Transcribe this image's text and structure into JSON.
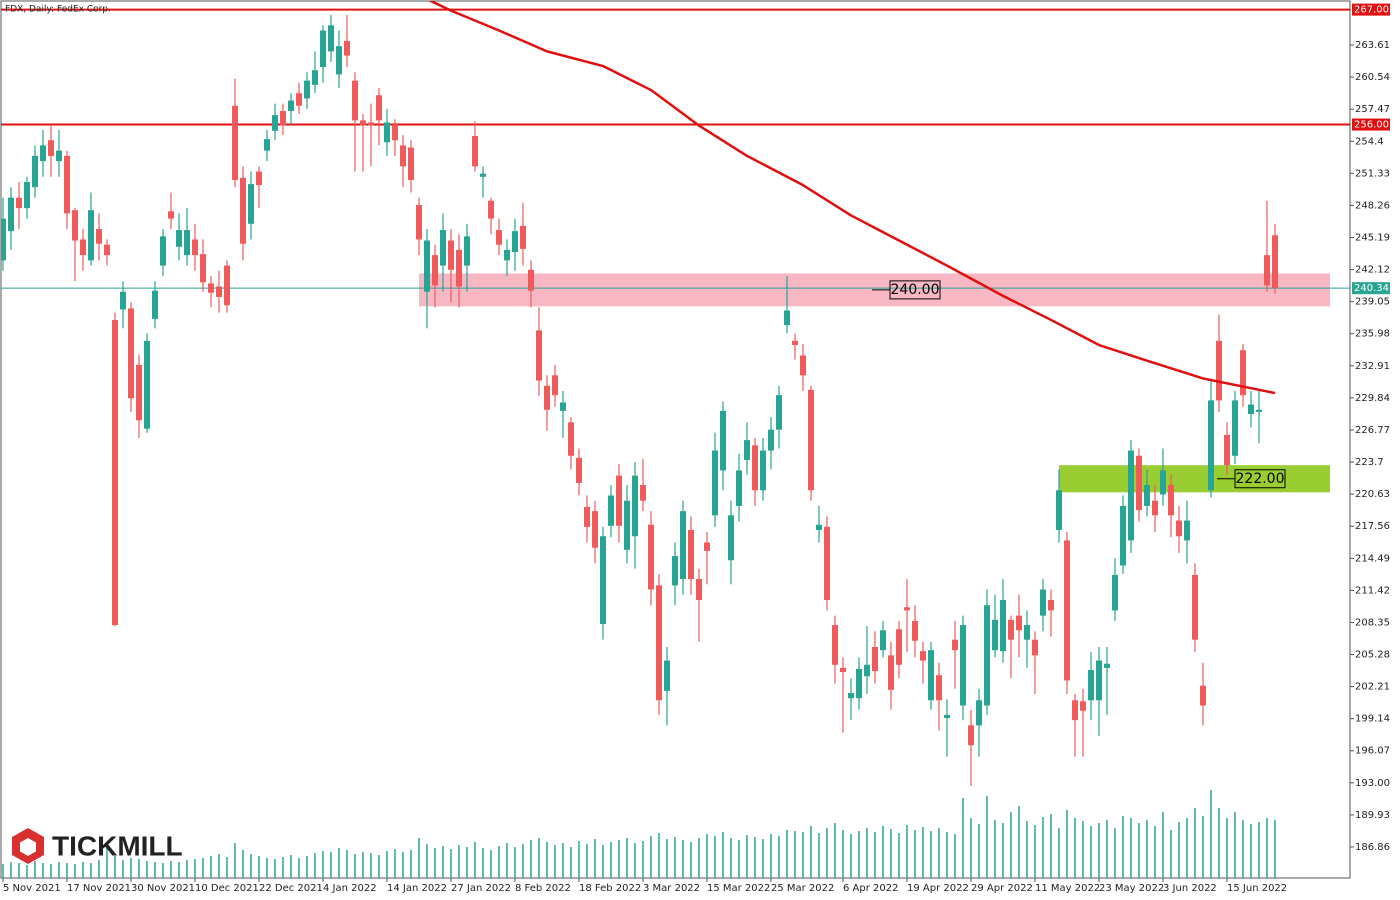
{
  "chart_data": {
    "type": "candlestick",
    "title": "FDX, Daily:  FedEx Corp.",
    "logo": "TICKMILL",
    "up_color": "#27a592",
    "down_color": "#ef5a5a",
    "volume_color": "#27a592",
    "ylim": [
      186.0,
      267.0
    ],
    "yticks": [
      263.61,
      260.54,
      257.47,
      254.4,
      251.33,
      248.26,
      245.19,
      242.12,
      239.05,
      235.98,
      232.91,
      229.84,
      226.77,
      223.7,
      220.63,
      217.56,
      214.49,
      211.42,
      208.35,
      205.28,
      202.21,
      199.14,
      196.07,
      {
        "value": 193.0,
        "label": "193.00"
      },
      189.93,
      186.86
    ],
    "xticks": [
      {
        "value": 0,
        "label": "5 Nov 2021"
      },
      {
        "value": 8,
        "label": "17 Nov 2021"
      },
      {
        "value": 16,
        "label": "30 Nov 2021"
      },
      {
        "value": 24,
        "label": "10 Dec 2021"
      },
      {
        "value": 32,
        "label": "22 Dec 2021"
      },
      {
        "value": 40,
        "label": "4 Jan 2022"
      },
      {
        "value": 48,
        "label": "14 Jan 2022"
      },
      {
        "value": 56,
        "label": "27 Jan 2022"
      },
      {
        "value": 64,
        "label": "8 Feb 2022"
      },
      {
        "value": 72,
        "label": "18 Feb 2022"
      },
      {
        "value": 80,
        "label": "3 Mar 2022"
      },
      {
        "value": 88,
        "label": "15 Mar 2022"
      },
      {
        "value": 96,
        "label": "25 Mar 2022"
      },
      {
        "value": 105,
        "label": "6 Apr 2022"
      },
      {
        "value": 113,
        "label": "19 Apr 2022"
      },
      {
        "value": 121,
        "label": "29 Apr 2022"
      },
      {
        "value": 129,
        "label": "11 May 2022"
      },
      {
        "value": 137,
        "label": "23 May 2022"
      },
      {
        "value": 145,
        "label": "3 Jun 2022"
      },
      {
        "value": 153,
        "label": "15 Jun 2022"
      }
    ],
    "open": [
      243,
      245.8,
      249,
      248,
      250,
      252.5,
      254.5,
      252.5,
      253,
      247.8,
      245,
      243,
      246,
      244.5,
      237.3,
      238.3,
      238.4,
      233,
      226.9,
      237.4,
      242.5,
      247.7,
      244.3,
      243.5,
      245,
      243.6,
      240.8,
      240.5,
      242.5,
      257.8,
      250.9,
      246.5,
      251.5,
      253.5,
      255.4,
      257.3,
      257.3,
      259,
      258.5,
      259.8,
      261.5,
      263,
      260.8,
      264,
      260.2,
      256.4,
      256.2,
      258.8,
      254.3,
      256,
      254,
      253.8,
      248.3,
      240,
      243.5,
      242.5,
      244.9,
      244,
      242.5,
      254.9,
      251,
      248.7,
      245.9,
      243,
      243.8,
      246.3,
      242.1,
      236.3,
      231,
      232,
      228.6,
      227.5,
      224.1,
      219.4,
      219,
      208.2,
      217.6,
      222.4,
      215.3,
      216.6,
      221.5,
      217.7,
      211.9,
      201.8,
      211.9,
      212.5,
      217.2,
      212.5,
      216,
      218.6,
      222.9,
      214.3,
      219.5,
      223.9,
      225.3,
      221,
      224.8,
      226.8,
      236.8,
      235.3,
      233.9,
      230.6,
      217.2,
      217.5,
      208.1,
      204,
      201.1,
      201.1,
      203.2,
      206,
      205.7,
      205.2,
      207.7,
      209.8,
      208.5,
      205.6,
      200.9,
      203.3,
      199.2,
      206.7,
      200.4,
      198.5,
      198.5,
      200.4,
      205.7,
      205.6,
      208.6,
      209,
      206.7,
      206.7,
      209,
      210.5,
      217.2,
      216.2,
      200.9,
      200.8,
      200.9,
      200.9,
      204,
      209.5,
      213.8,
      216.2,
      224.3,
      219.5,
      220,
      220.6,
      221.5,
      218.1,
      216.2,
      212.9,
      202.3,
      221,
      235.3,
      226.3,
      224.3,
      234.4,
      228.3,
      228.5,
      243.5,
      245.4
    ],
    "high": [
      249,
      250,
      250.5,
      251,
      254,
      255.5,
      256,
      255.5,
      253.5,
      248,
      246,
      249.5,
      247.5,
      245,
      238,
      241,
      239,
      234,
      236,
      241,
      246,
      249.5,
      247.5,
      248,
      246.5,
      245,
      241.5,
      242,
      243,
      260.4,
      252,
      251.5,
      252,
      255.5,
      258,
      258,
      259,
      260,
      261,
      263,
      265.5,
      266.5,
      265,
      266.5,
      261,
      257,
      258,
      259.5,
      257.5,
      256.5,
      255,
      254.5,
      249,
      246,
      244.5,
      247.5,
      246,
      245.5,
      246.5,
      256.3,
      252,
      249,
      247,
      245,
      247,
      248.5,
      243,
      238.5,
      232,
      233,
      230.5,
      228,
      225,
      220.5,
      220,
      217.5,
      221.5,
      223.5,
      221.5,
      223.7,
      224,
      219,
      213,
      206,
      216,
      220,
      218.5,
      213.5,
      217,
      226.5,
      229.5,
      220,
      224.5,
      227.5,
      226,
      226,
      228,
      231,
      241.5,
      236,
      235,
      231,
      219.5,
      218.5,
      209,
      205,
      203,
      205,
      208,
      207.5,
      208.5,
      206.5,
      208.5,
      212.5,
      210,
      206.5,
      206.5,
      204.5,
      201,
      208.5,
      209,
      200,
      202,
      211.5,
      211,
      212.5,
      209,
      211,
      209.5,
      207.5,
      212.5,
      211.5,
      223,
      217,
      201.5,
      202,
      205.5,
      206,
      206,
      214.5,
      220.5,
      225.8,
      225,
      223,
      221.5,
      225,
      222.5,
      219.5,
      220,
      214,
      204.5,
      231.5,
      237.8,
      227.5,
      230.5,
      235,
      230.5,
      230.5,
      248.7,
      246.5
    ],
    "low": [
      242,
      244,
      246,
      247,
      249,
      251,
      251,
      251,
      246,
      241,
      242,
      242.5,
      243,
      242.5,
      208,
      236.5,
      228.5,
      226,
      226.5,
      236.5,
      241.5,
      246,
      243,
      242.5,
      242,
      240,
      238.5,
      238,
      238,
      250,
      243,
      245,
      248,
      252.5,
      254.5,
      255,
      256,
      257,
      257.5,
      259,
      260,
      262,
      259.5,
      261.5,
      251.5,
      251.5,
      252,
      254,
      253,
      253,
      250,
      249.5,
      243.5,
      236.5,
      238.5,
      240,
      239,
      238.5,
      240,
      251.5,
      249,
      245.5,
      243.5,
      241.5,
      242,
      242.5,
      238.5,
      230,
      226.7,
      229,
      226,
      223,
      220.5,
      216,
      214,
      206.7,
      216.5,
      216,
      214,
      213.5,
      219,
      210,
      199.5,
      198.5,
      210,
      211,
      211,
      206.5,
      212,
      217.5,
      221,
      212,
      218,
      222.5,
      219.5,
      220,
      223,
      225,
      236,
      233.5,
      230.5,
      220,
      216,
      209.5,
      202.5,
      197.8,
      199,
      200,
      201.5,
      202.5,
      205,
      200,
      203,
      205.5,
      205,
      202.5,
      200,
      198,
      195.5,
      202,
      199,
      192.7,
      195.5,
      199.5,
      205,
      204.5,
      203,
      205,
      204,
      201.5,
      207.5,
      207,
      216,
      201.5,
      195.5,
      195.5,
      199,
      197.5,
      199.5,
      208.5,
      213,
      215,
      218,
      218.5,
      217,
      219.5,
      216.5,
      215,
      214,
      205.5,
      198.5,
      220.3,
      228.5,
      222.5,
      223.5,
      229,
      227,
      225.5,
      240,
      239.8
    ],
    "close": [
      247,
      249,
      248,
      250.5,
      253,
      254,
      253,
      253.5,
      247.5,
      244.9,
      243.5,
      247.8,
      244.6,
      243.5,
      208.1,
      240,
      229.8,
      227.7,
      235.3,
      240.1,
      245.3,
      247,
      245.9,
      245.9,
      243.5,
      240.9,
      239.9,
      239.5,
      238.7,
      250.7,
      244.6,
      250.3,
      250.2,
      254.6,
      256.9,
      255.9,
      258.3,
      257.8,
      260.2,
      261.2,
      265,
      265.5,
      263.5,
      262.6,
      256.4,
      255.9,
      255.9,
      256.4,
      256.2,
      254.5,
      252,
      250.7,
      245,
      244.9,
      240.6,
      245.9,
      242.1,
      240.5,
      245.3,
      252,
      251.3,
      247,
      244.5,
      244,
      245.8,
      244.1,
      240.1,
      231.5,
      228.7,
      230.1,
      229.4,
      224.3,
      221.7,
      217.5,
      215.5,
      216.6,
      220.5,
      217.6,
      220,
      222.4,
      220,
      211.5,
      200.9,
      204.7,
      214.7,
      219,
      212.5,
      210.5,
      215.2,
      224.8,
      228.6,
      218.6,
      222.9,
      225.8,
      221,
      224.8,
      226.8,
      230.1,
      238.2,
      234.9,
      232,
      221,
      217.7,
      210.5,
      204.3,
      203.6,
      201.6,
      203.9,
      204.3,
      203.7,
      207.6,
      201.9,
      204.3,
      209.5,
      206.6,
      204.7,
      205.7,
      200.9,
      199.5,
      205.7,
      208.1,
      196.6,
      200.9,
      210,
      208.6,
      210.5,
      206.7,
      207.6,
      208.1,
      205.2,
      211.5,
      209.5,
      221,
      202.8,
      199,
      199.9,
      203.8,
      204.7,
      204.4,
      212.9,
      219.5,
      224.8,
      219.1,
      221.5,
      218.6,
      222.9,
      218.6,
      216.6,
      218.1,
      206.7,
      200.4,
      229.6,
      229.6,
      223.4,
      229.6,
      230.1,
      229.2,
      228.7,
      240.6,
      240.34
    ],
    "volume": [
      14,
      16,
      15,
      13,
      17,
      15,
      14,
      16,
      15,
      14,
      16,
      15,
      18,
      30,
      22,
      18,
      20,
      19,
      17,
      16,
      15,
      17,
      16,
      18,
      19,
      20,
      22,
      24,
      21,
      35,
      28,
      24,
      22,
      20,
      19,
      21,
      23,
      20,
      22,
      25,
      27,
      26,
      30,
      28,
      24,
      26,
      25,
      23,
      27,
      29,
      26,
      28,
      40,
      34,
      30,
      32,
      29,
      33,
      31,
      36,
      30,
      28,
      32,
      35,
      31,
      34,
      38,
      40,
      36,
      33,
      35,
      31,
      37,
      34,
      39,
      33,
      36,
      38,
      40,
      35,
      37,
      42,
      45,
      39,
      41,
      38,
      36,
      40,
      44,
      42,
      46,
      40,
      38,
      43,
      41,
      39,
      44,
      42,
      48,
      47,
      46,
      52,
      45,
      50,
      55,
      48,
      44,
      47,
      50,
      46,
      52,
      49,
      45,
      53,
      48,
      51,
      47,
      50,
      46,
      44,
      80,
      60,
      54,
      82,
      58,
      55,
      66,
      72,
      57,
      53,
      61,
      64,
      50,
      68,
      60,
      57,
      52,
      55,
      58,
      50,
      62,
      60,
      55,
      58,
      52,
      66,
      48,
      56,
      60,
      70,
      62,
      88,
      70,
      60,
      66,
      58,
      54,
      56,
      60,
      58
    ],
    "moving_average": {
      "color": "#e01010",
      "x": [
        53,
        56,
        62,
        68,
        75,
        81,
        87,
        93,
        100,
        106,
        112,
        118,
        125,
        131,
        137,
        143,
        150,
        159
      ],
      "values": [
        268,
        266.9,
        265,
        263,
        261.6,
        259.3,
        255.9,
        253,
        250.2,
        247.3,
        244.9,
        242.5,
        239.6,
        237.3,
        234.9,
        233.4,
        231.7,
        230.3
      ]
    },
    "levels": [
      {
        "value": 267,
        "label": "267.00",
        "color": "#e01010"
      },
      {
        "value": 256,
        "label": "256.00",
        "color": "#e01010"
      }
    ],
    "last_price": 240.34,
    "last_price_color": "#27a592",
    "zones": [
      {
        "low": 238.6,
        "high": 241.75,
        "start": 52,
        "color": "#f7b8c4",
        "label": "240.00"
      },
      {
        "low": 220.8,
        "high": 223.4,
        "start": 132,
        "color": "#9acd32",
        "label": "222.00"
      }
    ]
  }
}
